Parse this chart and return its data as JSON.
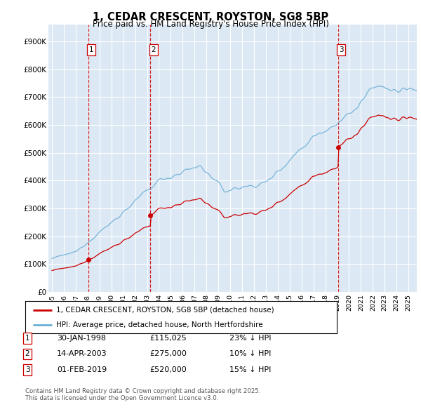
{
  "title": "1, CEDAR CRESCENT, ROYSTON, SG8 5BP",
  "subtitle": "Price paid vs. HM Land Registry's House Price Index (HPI)",
  "legend_line1": "1, CEDAR CRESCENT, ROYSTON, SG8 5BP (detached house)",
  "legend_line2": "HPI: Average price, detached house, North Hertfordshire",
  "footer1": "Contains HM Land Registry data © Crown copyright and database right 2025.",
  "footer2": "This data is licensed under the Open Government Licence v3.0.",
  "sales": [
    {
      "num": 1,
      "date": "30-JAN-1998",
      "price": 115025,
      "hpi_diff": "23% ↓ HPI",
      "x": 1998.08
    },
    {
      "num": 2,
      "date": "14-APR-2003",
      "price": 275000,
      "hpi_diff": "10% ↓ HPI",
      "x": 2003.29
    },
    {
      "num": 3,
      "date": "01-FEB-2019",
      "price": 520000,
      "hpi_diff": "15% ↓ HPI",
      "x": 2019.09
    }
  ],
  "hpi_color": "#6baed6",
  "price_color": "#cc0000",
  "sale_dot_color": "#cc0000",
  "vline_color": "#cc0000",
  "background_color": "#dce9f5",
  "ylim": [
    0,
    960000
  ],
  "xlim_start": 1994.7,
  "xlim_end": 2025.7
}
